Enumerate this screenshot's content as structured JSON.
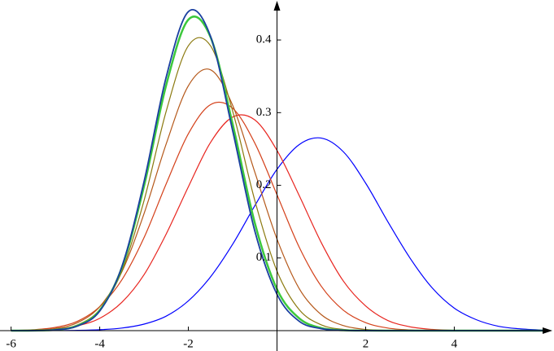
{
  "chart_data": {
    "type": "line",
    "x": [
      -6,
      -5.5,
      -5,
      -4.5,
      -4,
      -3.5,
      -3,
      -2.5,
      -2,
      -1.5,
      -1,
      -0.5,
      0,
      0.5,
      1,
      1.5,
      2,
      2.5,
      3,
      3.5,
      4,
      4.5,
      5,
      5.5,
      6
    ],
    "series": [
      {
        "color": "#0000ff",
        "width": 1.2,
        "values": [
          0,
          0,
          0.0001,
          0.0004,
          0.0013,
          0.0036,
          0.009,
          0.02,
          0.041,
          0.074,
          0.119,
          0.172,
          0.222,
          0.256,
          0.265,
          0.246,
          0.203,
          0.15,
          0.1,
          0.059,
          0.031,
          0.015,
          0.006,
          0.0024,
          0.0008
        ]
      },
      {
        "color": "#e8251f",
        "width": 1.2,
        "values": [
          0.0002,
          0.0006,
          0.0022,
          0.0066,
          0.017,
          0.039,
          0.077,
          0.133,
          0.198,
          0.259,
          0.294,
          0.29,
          0.248,
          0.186,
          0.121,
          0.068,
          0.034,
          0.014,
          0.0053,
          0.0017,
          0.0005,
          0.0001,
          0,
          0,
          0
        ]
      },
      {
        "color": "#d4401a",
        "width": 1.2,
        "values": [
          0.0003,
          0.0013,
          0.0045,
          0.013,
          0.033,
          0.07,
          0.128,
          0.202,
          0.271,
          0.311,
          0.306,
          0.258,
          0.187,
          0.115,
          0.061,
          0.028,
          0.011,
          0.0036,
          0.001,
          0.0003,
          0.0001,
          0,
          0,
          0,
          0
        ]
      },
      {
        "color": "#b5581a",
        "width": 1.2,
        "values": [
          0.0001,
          0.0007,
          0.003,
          0.011,
          0.033,
          0.081,
          0.161,
          0.257,
          0.337,
          0.359,
          0.31,
          0.218,
          0.126,
          0.058,
          0.022,
          0.0069,
          0.0017,
          0.0004,
          0.0001,
          0,
          0,
          0,
          0,
          0,
          0
        ]
      },
      {
        "color": "#8c7a10",
        "width": 1.2,
        "values": [
          0,
          0.0003,
          0.0017,
          0.0079,
          0.029,
          0.082,
          0.179,
          0.302,
          0.392,
          0.392,
          0.302,
          0.179,
          0.082,
          0.029,
          0.0079,
          0.0017,
          0.0003,
          0,
          0,
          0,
          0,
          0,
          0,
          0,
          0
        ]
      },
      {
        "color": "#3cc83c",
        "width": 2.5,
        "values": [
          0,
          0.0002,
          0.0012,
          0.0069,
          0.028,
          0.087,
          0.199,
          0.338,
          0.428,
          0.404,
          0.284,
          0.148,
          0.057,
          0.017,
          0.0036,
          0.0006,
          0.0001,
          0,
          0,
          0,
          0,
          0,
          0,
          0,
          0
        ]
      },
      {
        "color": "#1a3fa0",
        "width": 1.8,
        "values": [
          0,
          0.0001,
          0.0011,
          0.0064,
          0.027,
          0.088,
          0.205,
          0.349,
          0.439,
          0.405,
          0.275,
          0.137,
          0.05,
          0.013,
          0.0027,
          0.0004,
          0.0001,
          0,
          0,
          0,
          0,
          0,
          0,
          0,
          0
        ]
      }
    ],
    "xlim": [
      -6.25,
      6.25
    ],
    "ylim": [
      -0.028,
      0.455
    ],
    "xticks": [
      -6,
      -4,
      -2,
      2,
      4
    ],
    "yticks": [
      0.1,
      0.2,
      0.3,
      0.4
    ]
  }
}
